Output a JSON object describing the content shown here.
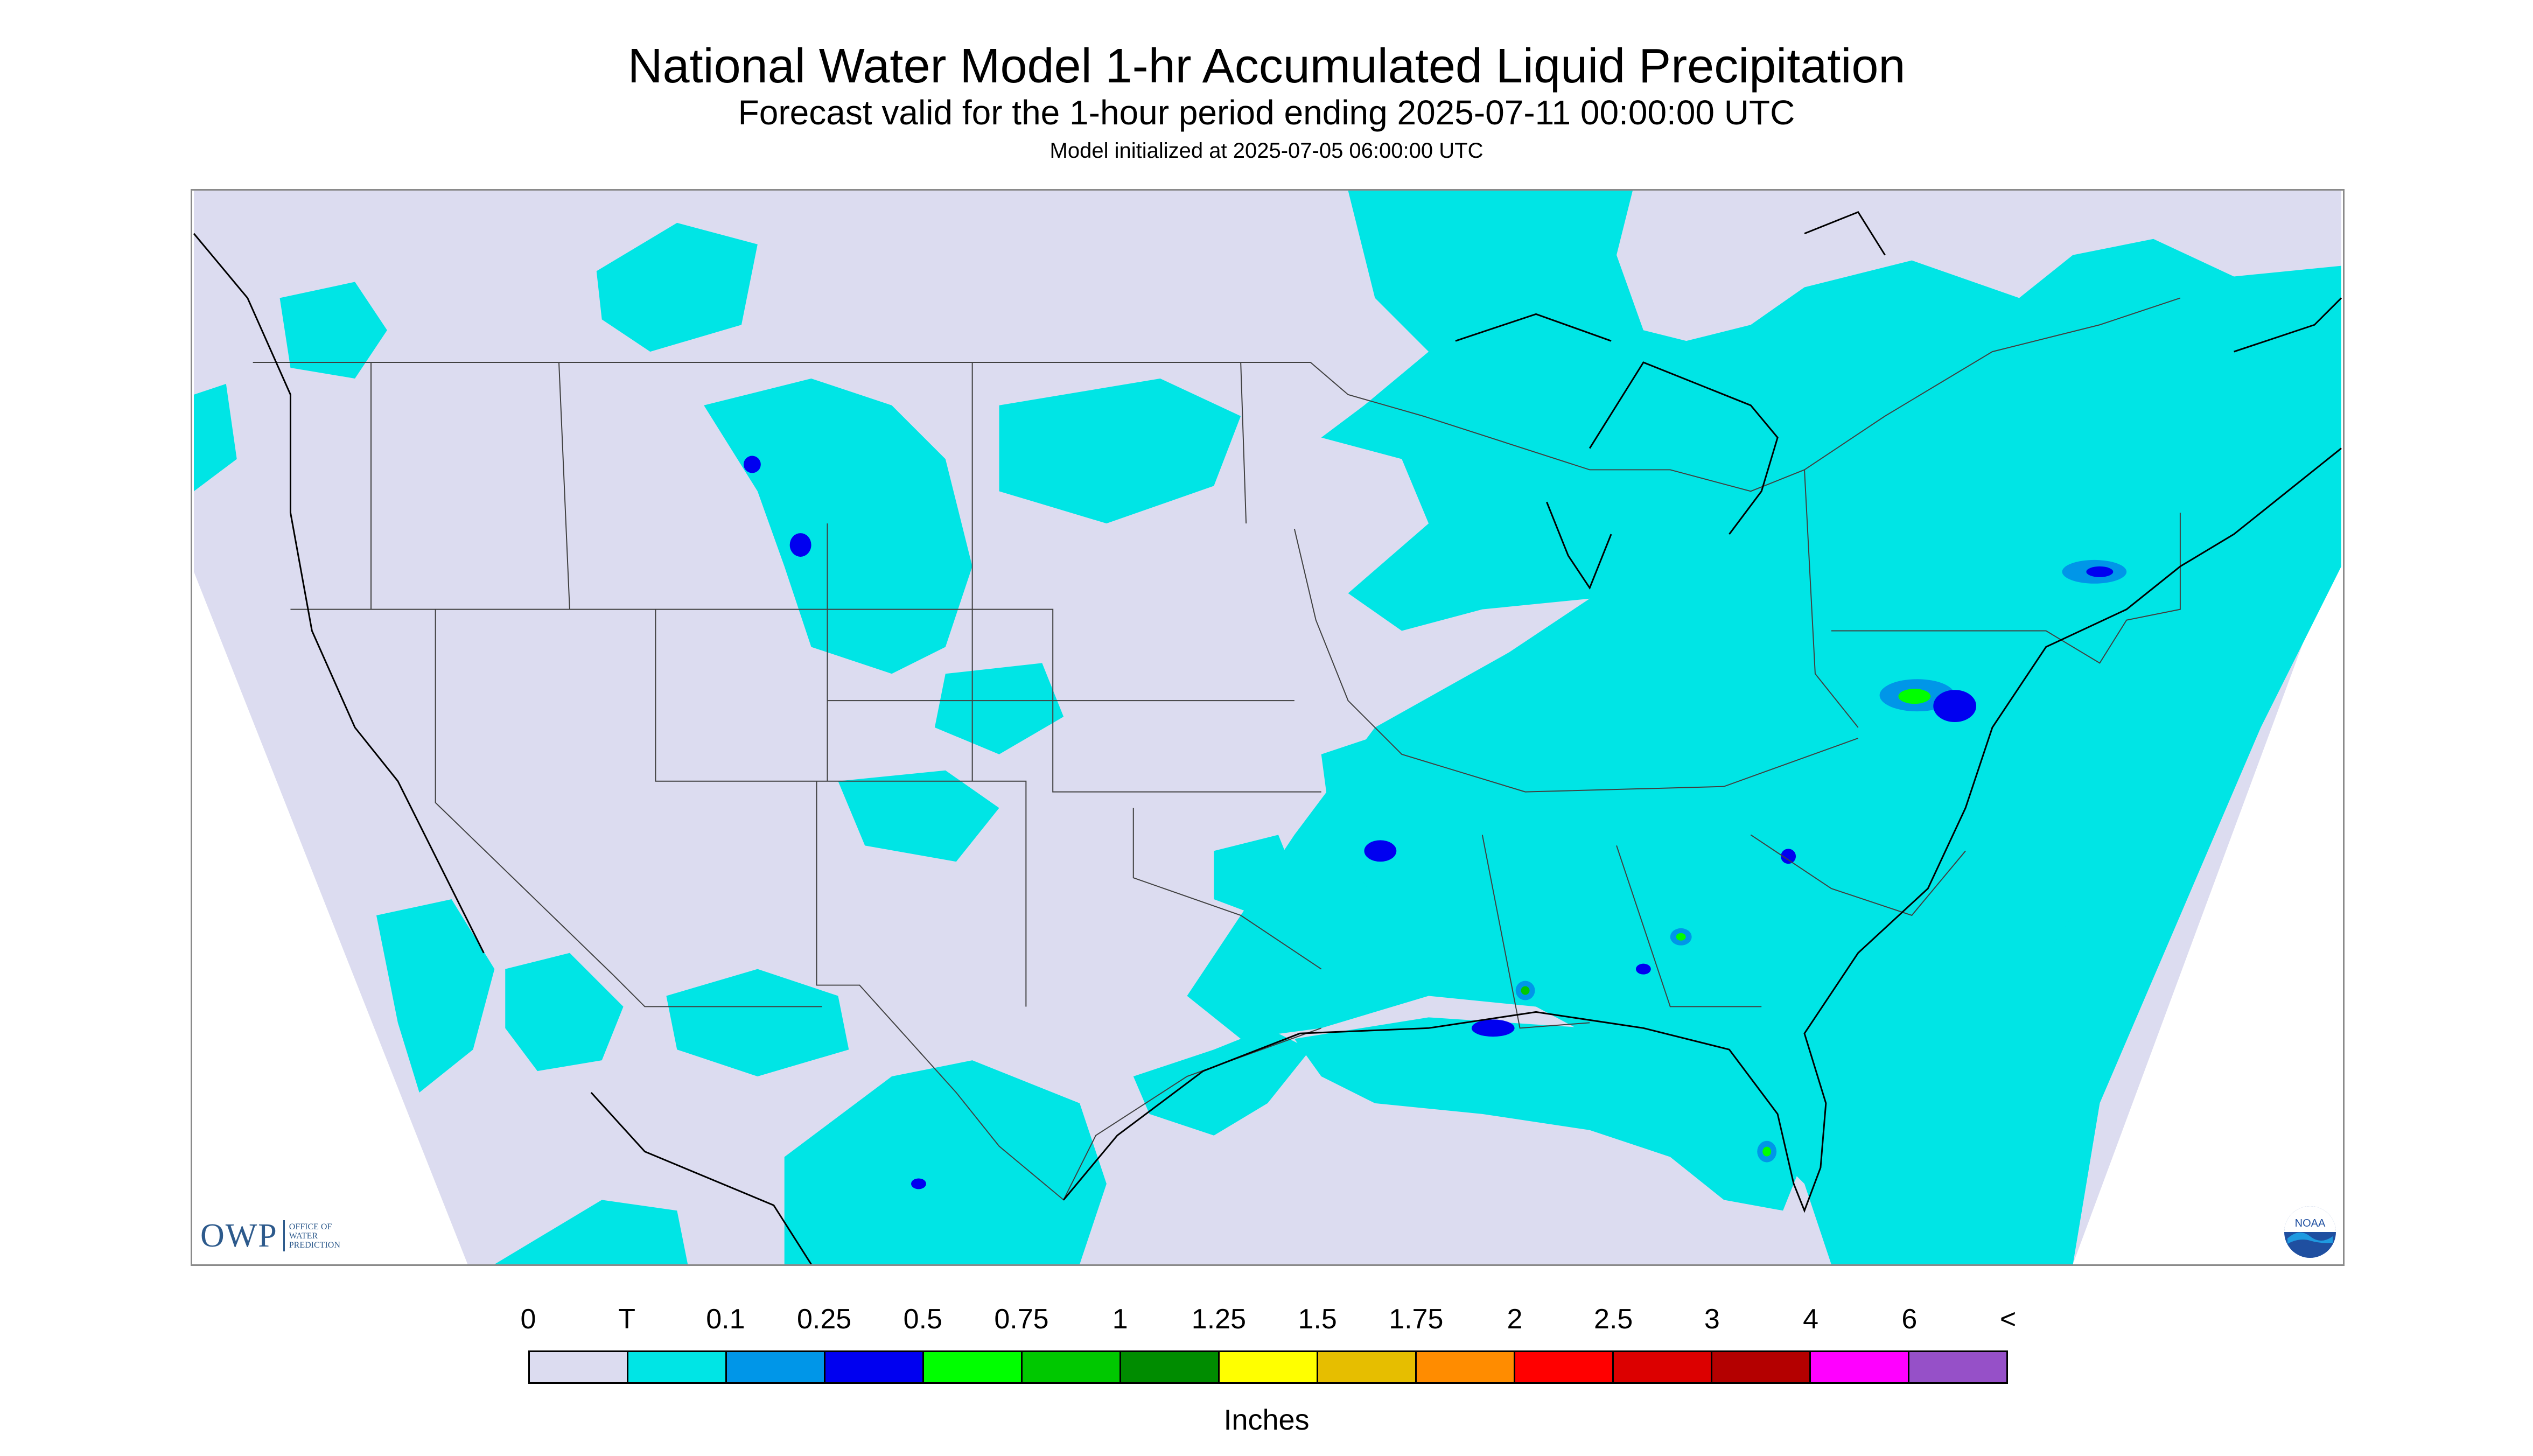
{
  "title": "National Water Model 1-hr Accumulated Liquid Precipitation",
  "subtitle": "Forecast valid for the 1-hour period ending 2025-07-11 00:00:00 UTC",
  "model_init": "Model initialized at 2025-07-05 06:00:00 UTC",
  "logo": {
    "owp": "OWP",
    "owp_text": [
      "OFFICE OF",
      "WATER",
      "PREDICTION"
    ],
    "noaa": "NOAA"
  },
  "legend": {
    "ticks": [
      "0",
      "T",
      "0.1",
      "0.25",
      "0.5",
      "0.75",
      "1",
      "1.25",
      "1.5",
      "1.75",
      "2",
      "2.5",
      "3",
      "4",
      "6",
      "<"
    ],
    "colors": [
      "#dcdcf0",
      "#00e5e5",
      "#0096e8",
      "#0000f0",
      "#00ff00",
      "#00c800",
      "#008c00",
      "#ffff00",
      "#e6be00",
      "#ff8c00",
      "#ff0000",
      "#dc0000",
      "#b40000",
      "#ff00ff",
      "#9650c8"
    ],
    "units": "Inches"
  },
  "colors": {
    "background_field": "#dcdcf0",
    "trace": "#00e5e5",
    "border_lines": "#404040"
  }
}
